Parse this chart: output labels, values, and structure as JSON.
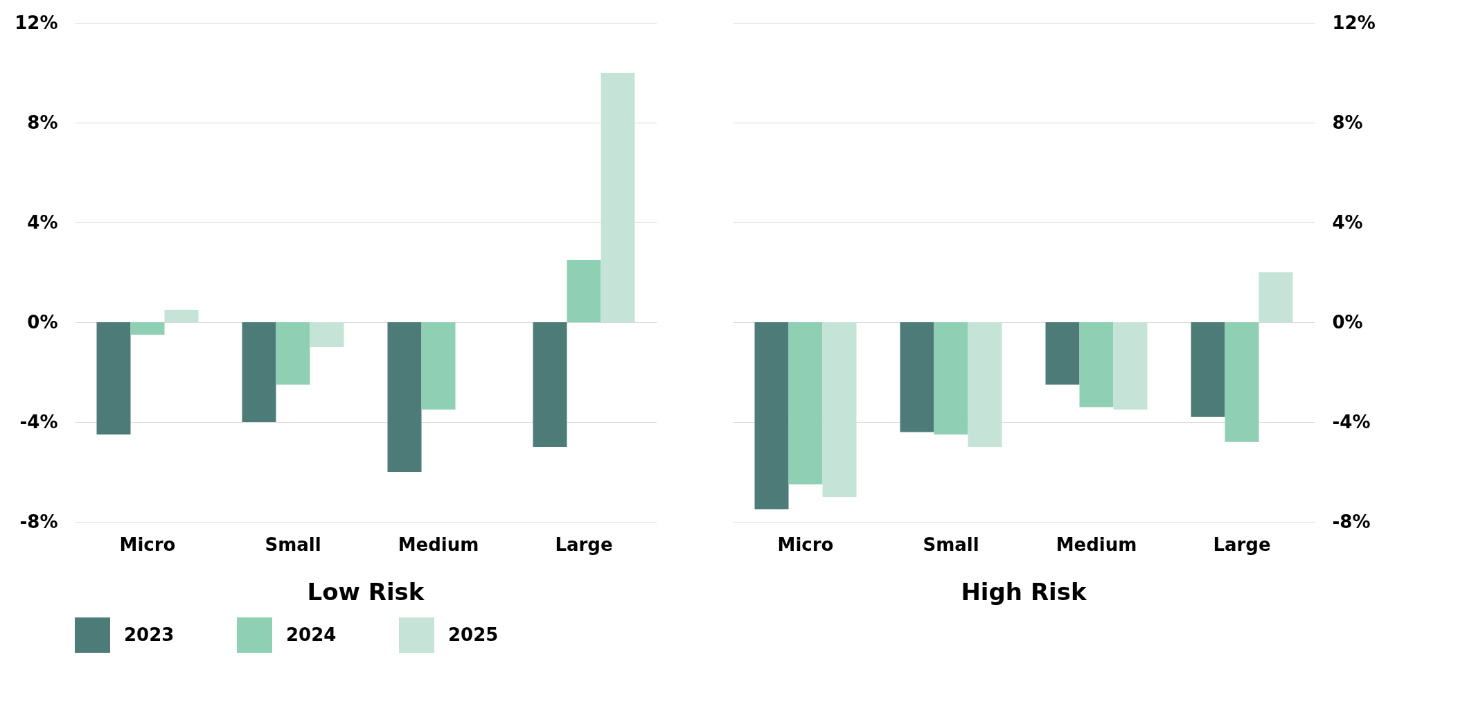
{
  "chart_data": [
    {
      "type": "bar",
      "title": "Low Risk",
      "categories": [
        "Micro",
        "Small",
        "Medium",
        "Large"
      ],
      "series": [
        {
          "name": "2023",
          "color": "#4d7b78",
          "values": [
            -4.5,
            -4.0,
            -6.0,
            -5.0
          ]
        },
        {
          "name": "2024",
          "color": "#8fcfb4",
          "values": [
            -0.5,
            -2.5,
            -3.5,
            2.5
          ]
        },
        {
          "name": "2025",
          "color": "#c5e3d6",
          "values": [
            0.5,
            -1.0,
            null,
            10.0
          ]
        }
      ],
      "ylim": [
        -8,
        12
      ],
      "yticks": [
        {
          "value": -8,
          "label": "-8%"
        },
        {
          "value": -4,
          "label": "-4%"
        },
        {
          "value": 0,
          "label": "0%"
        },
        {
          "value": 4,
          "label": "4%"
        },
        {
          "value": 8,
          "label": "8%"
        },
        {
          "value": 12,
          "label": "12%"
        }
      ],
      "grid": "y",
      "legend": "bottom"
    },
    {
      "type": "bar",
      "title": "High Risk",
      "categories": [
        "Micro",
        "Small",
        "Medium",
        "Large"
      ],
      "series": [
        {
          "name": "2023",
          "color": "#4d7b78",
          "values": [
            -7.5,
            -4.4,
            -2.5,
            -3.8
          ]
        },
        {
          "name": "2024",
          "color": "#8fcfb4",
          "values": [
            -6.5,
            -4.5,
            -3.4,
            -4.8
          ]
        },
        {
          "name": "2025",
          "color": "#c5e3d6",
          "values": [
            -7.0,
            -5.0,
            -3.5,
            2.0
          ]
        }
      ],
      "ylim": [
        -8,
        12
      ],
      "yticks": [
        {
          "value": -8,
          "label": "-8%"
        },
        {
          "value": -4,
          "label": "-4%"
        },
        {
          "value": 0,
          "label": "0%"
        },
        {
          "value": 4,
          "label": "4%"
        },
        {
          "value": 8,
          "label": "8%"
        },
        {
          "value": 12,
          "label": "12%"
        }
      ],
      "grid": "y",
      "legend": "bottom"
    }
  ]
}
